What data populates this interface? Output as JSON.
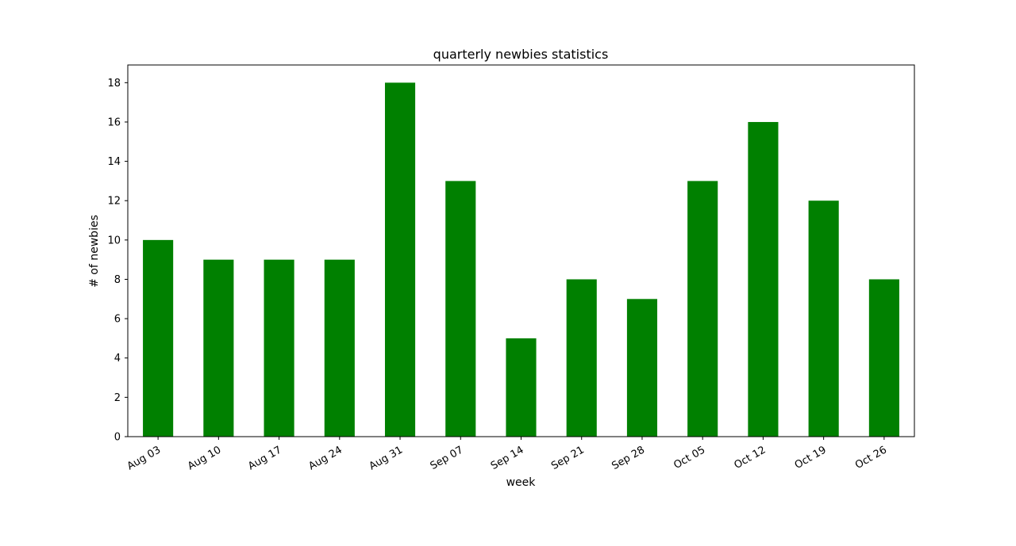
{
  "chart_data": {
    "type": "bar",
    "title": "quarterly newbies statistics",
    "xlabel": "week",
    "ylabel": "# of newbies",
    "categories": [
      "Aug 03",
      "Aug 10",
      "Aug 17",
      "Aug 24",
      "Aug 31",
      "Sep 07",
      "Sep 14",
      "Sep 21",
      "Sep 28",
      "Oct 05",
      "Oct 12",
      "Oct 19",
      "Oct 26"
    ],
    "values": [
      10,
      9,
      9,
      9,
      18,
      13,
      5,
      8,
      7,
      13,
      16,
      12,
      8
    ],
    "ylim": [
      0,
      18.9
    ],
    "yticks": [
      0,
      2,
      4,
      6,
      8,
      10,
      12,
      14,
      16,
      18
    ],
    "grid": false,
    "legend": "none",
    "bar_color": "#008000"
  }
}
